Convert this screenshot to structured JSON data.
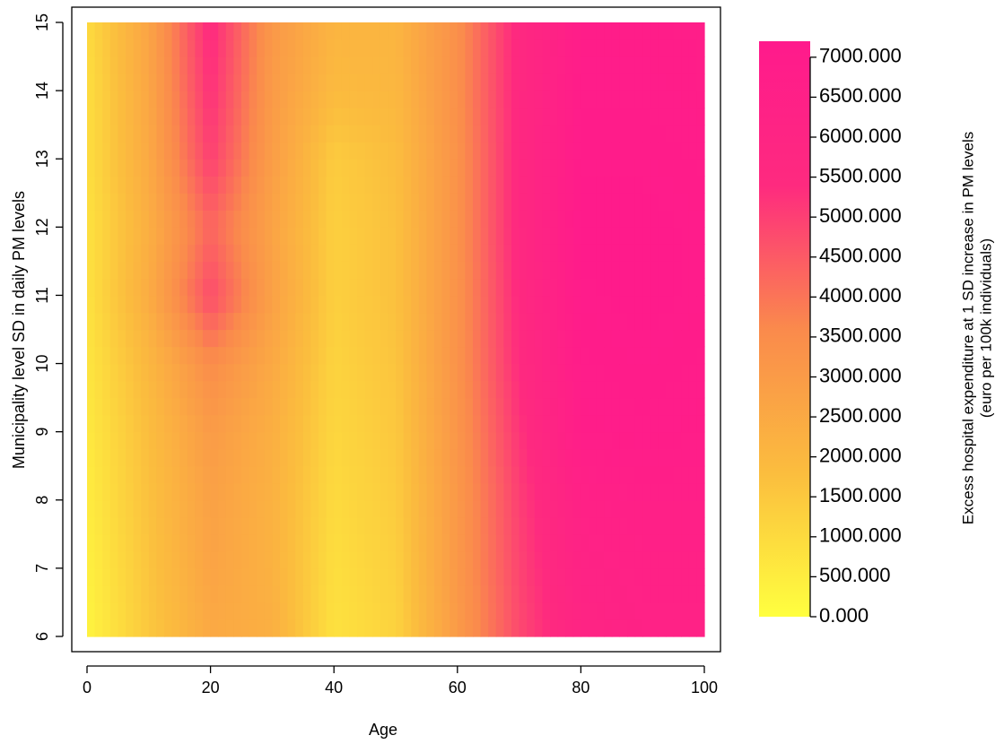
{
  "chart_data": {
    "type": "heatmap",
    "x_label": "Age",
    "y_label": "Municipality level SD in daily PM levels",
    "x": [
      0,
      10,
      20,
      30,
      40,
      50,
      60,
      70,
      80,
      90,
      100
    ],
    "y": [
      6,
      7,
      8,
      9,
      10,
      11,
      12,
      13,
      14,
      15
    ],
    "z": [
      [
        300,
        1500,
        2500,
        2300,
        800,
        1200,
        3000,
        4800,
        6000,
        6300,
        6300
      ],
      [
        400,
        1600,
        2700,
        2200,
        900,
        1300,
        3100,
        4900,
        6200,
        6400,
        6400
      ],
      [
        500,
        1700,
        2800,
        2200,
        1000,
        1400,
        3100,
        5000,
        6400,
        6600,
        6600
      ],
      [
        600,
        1800,
        3000,
        2300,
        1100,
        1500,
        3200,
        5200,
        6800,
        6900,
        6800
      ],
      [
        700,
        2000,
        3500,
        2500,
        1200,
        1600,
        3300,
        5400,
        6900,
        7000,
        6900
      ],
      [
        800,
        2400,
        4800,
        2800,
        1300,
        1700,
        3300,
        5500,
        7000,
        7100,
        7000
      ],
      [
        800,
        2300,
        4300,
        2700,
        1300,
        1700,
        3300,
        5600,
        7100,
        7100,
        7000
      ],
      [
        900,
        2500,
        5000,
        2900,
        1400,
        1800,
        3300,
        5600,
        7000,
        7000,
        6900
      ],
      [
        900,
        2600,
        5300,
        3000,
        1900,
        2000,
        3400,
        5600,
        6900,
        6900,
        6800
      ],
      [
        1000,
        2700,
        5500,
        3100,
        2100,
        2100,
        3400,
        5600,
        6800,
        6800,
        6800
      ]
    ],
    "xlim": [
      0,
      100
    ],
    "xticks": [
      0,
      20,
      40,
      60,
      80,
      100
    ],
    "ylim": [
      6,
      15
    ],
    "yticks": [
      6,
      7,
      8,
      9,
      10,
      11,
      12,
      13,
      14,
      15
    ],
    "colors": [
      "#ffff3f",
      "#fbbd3e",
      "#fa8a4c",
      "#fe2a7f",
      "#ff1a8c"
    ],
    "colorbar": {
      "label": [
        "Excess hospital expenditure at 1 SD increase in PM levels",
        "(euro per 100k individuals)"
      ],
      "lim": [
        0,
        7200
      ],
      "ticks": [
        {
          "value": 0,
          "label": "0.000"
        },
        {
          "value": 500,
          "label": "500.000"
        },
        {
          "value": 1000,
          "label": "1000.000"
        },
        {
          "value": 1500,
          "label": "1500.000"
        },
        {
          "value": 2000,
          "label": "2000.000"
        },
        {
          "value": 2500,
          "label": "2500.000"
        },
        {
          "value": 3000,
          "label": "3000.000"
        },
        {
          "value": 3500,
          "label": "3500.000"
        },
        {
          "value": 4000,
          "label": "4000.000"
        },
        {
          "value": 4500,
          "label": "4500.000"
        },
        {
          "value": 5000,
          "label": "5000.000"
        },
        {
          "value": 5500,
          "label": "5500.000"
        },
        {
          "value": 6000,
          "label": "6000.000"
        },
        {
          "value": 6500,
          "label": "6500.000"
        },
        {
          "value": 7000,
          "label": "7000.000"
        }
      ]
    }
  }
}
